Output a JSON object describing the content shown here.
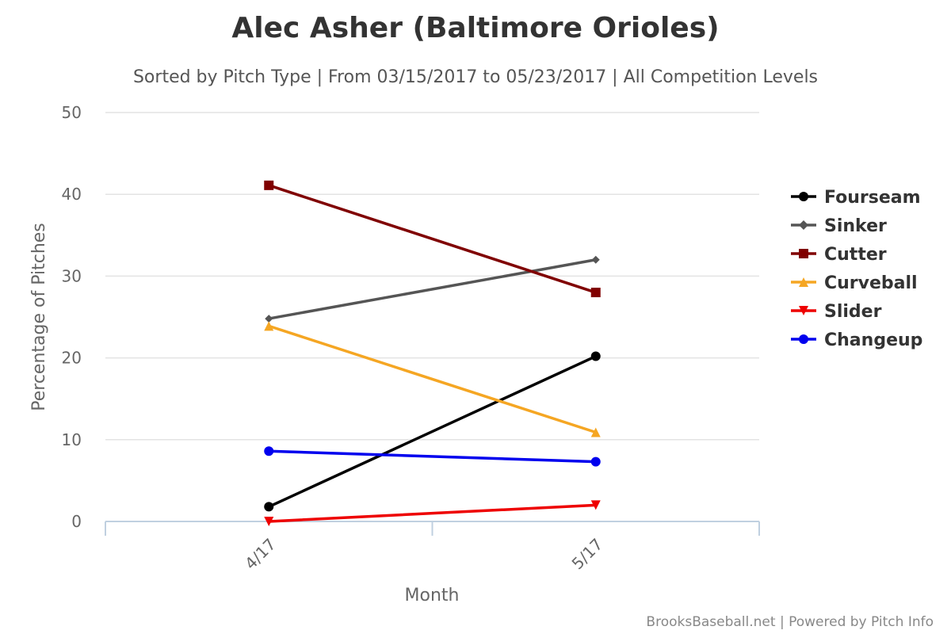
{
  "chart_data": {
    "type": "line",
    "title": "Alec Asher (Baltimore Orioles)",
    "subtitle": "Sorted by Pitch Type | From 03/15/2017 to 05/23/2017 | All Competition Levels",
    "xlabel": "Month",
    "ylabel": "Percentage of Pitches",
    "categories": [
      "4/17",
      "5/17"
    ],
    "ylim": [
      0,
      50
    ],
    "yticks": [
      "0",
      "10",
      "20",
      "30",
      "40",
      "50"
    ],
    "grid": true,
    "legend_position": "right",
    "series": [
      {
        "name": "Fourseam",
        "color": "#000000",
        "marker": "circle",
        "values": [
          1.8,
          20.2
        ]
      },
      {
        "name": "Sinker",
        "color": "#555555",
        "marker": "diamond",
        "values": [
          24.8,
          32.0
        ]
      },
      {
        "name": "Cutter",
        "color": "#800000",
        "marker": "square",
        "values": [
          41.1,
          28.0
        ]
      },
      {
        "name": "Curveball",
        "color": "#f5a623",
        "marker": "triangle",
        "values": [
          23.9,
          10.9
        ]
      },
      {
        "name": "Slider",
        "color": "#ee0000",
        "marker": "triangle-down",
        "values": [
          0.0,
          2.0
        ]
      },
      {
        "name": "Changeup",
        "color": "#0000ee",
        "marker": "circle",
        "values": [
          8.6,
          7.3
        ]
      }
    ]
  },
  "credits": "BrooksBaseball.net | Powered by Pitch Info"
}
